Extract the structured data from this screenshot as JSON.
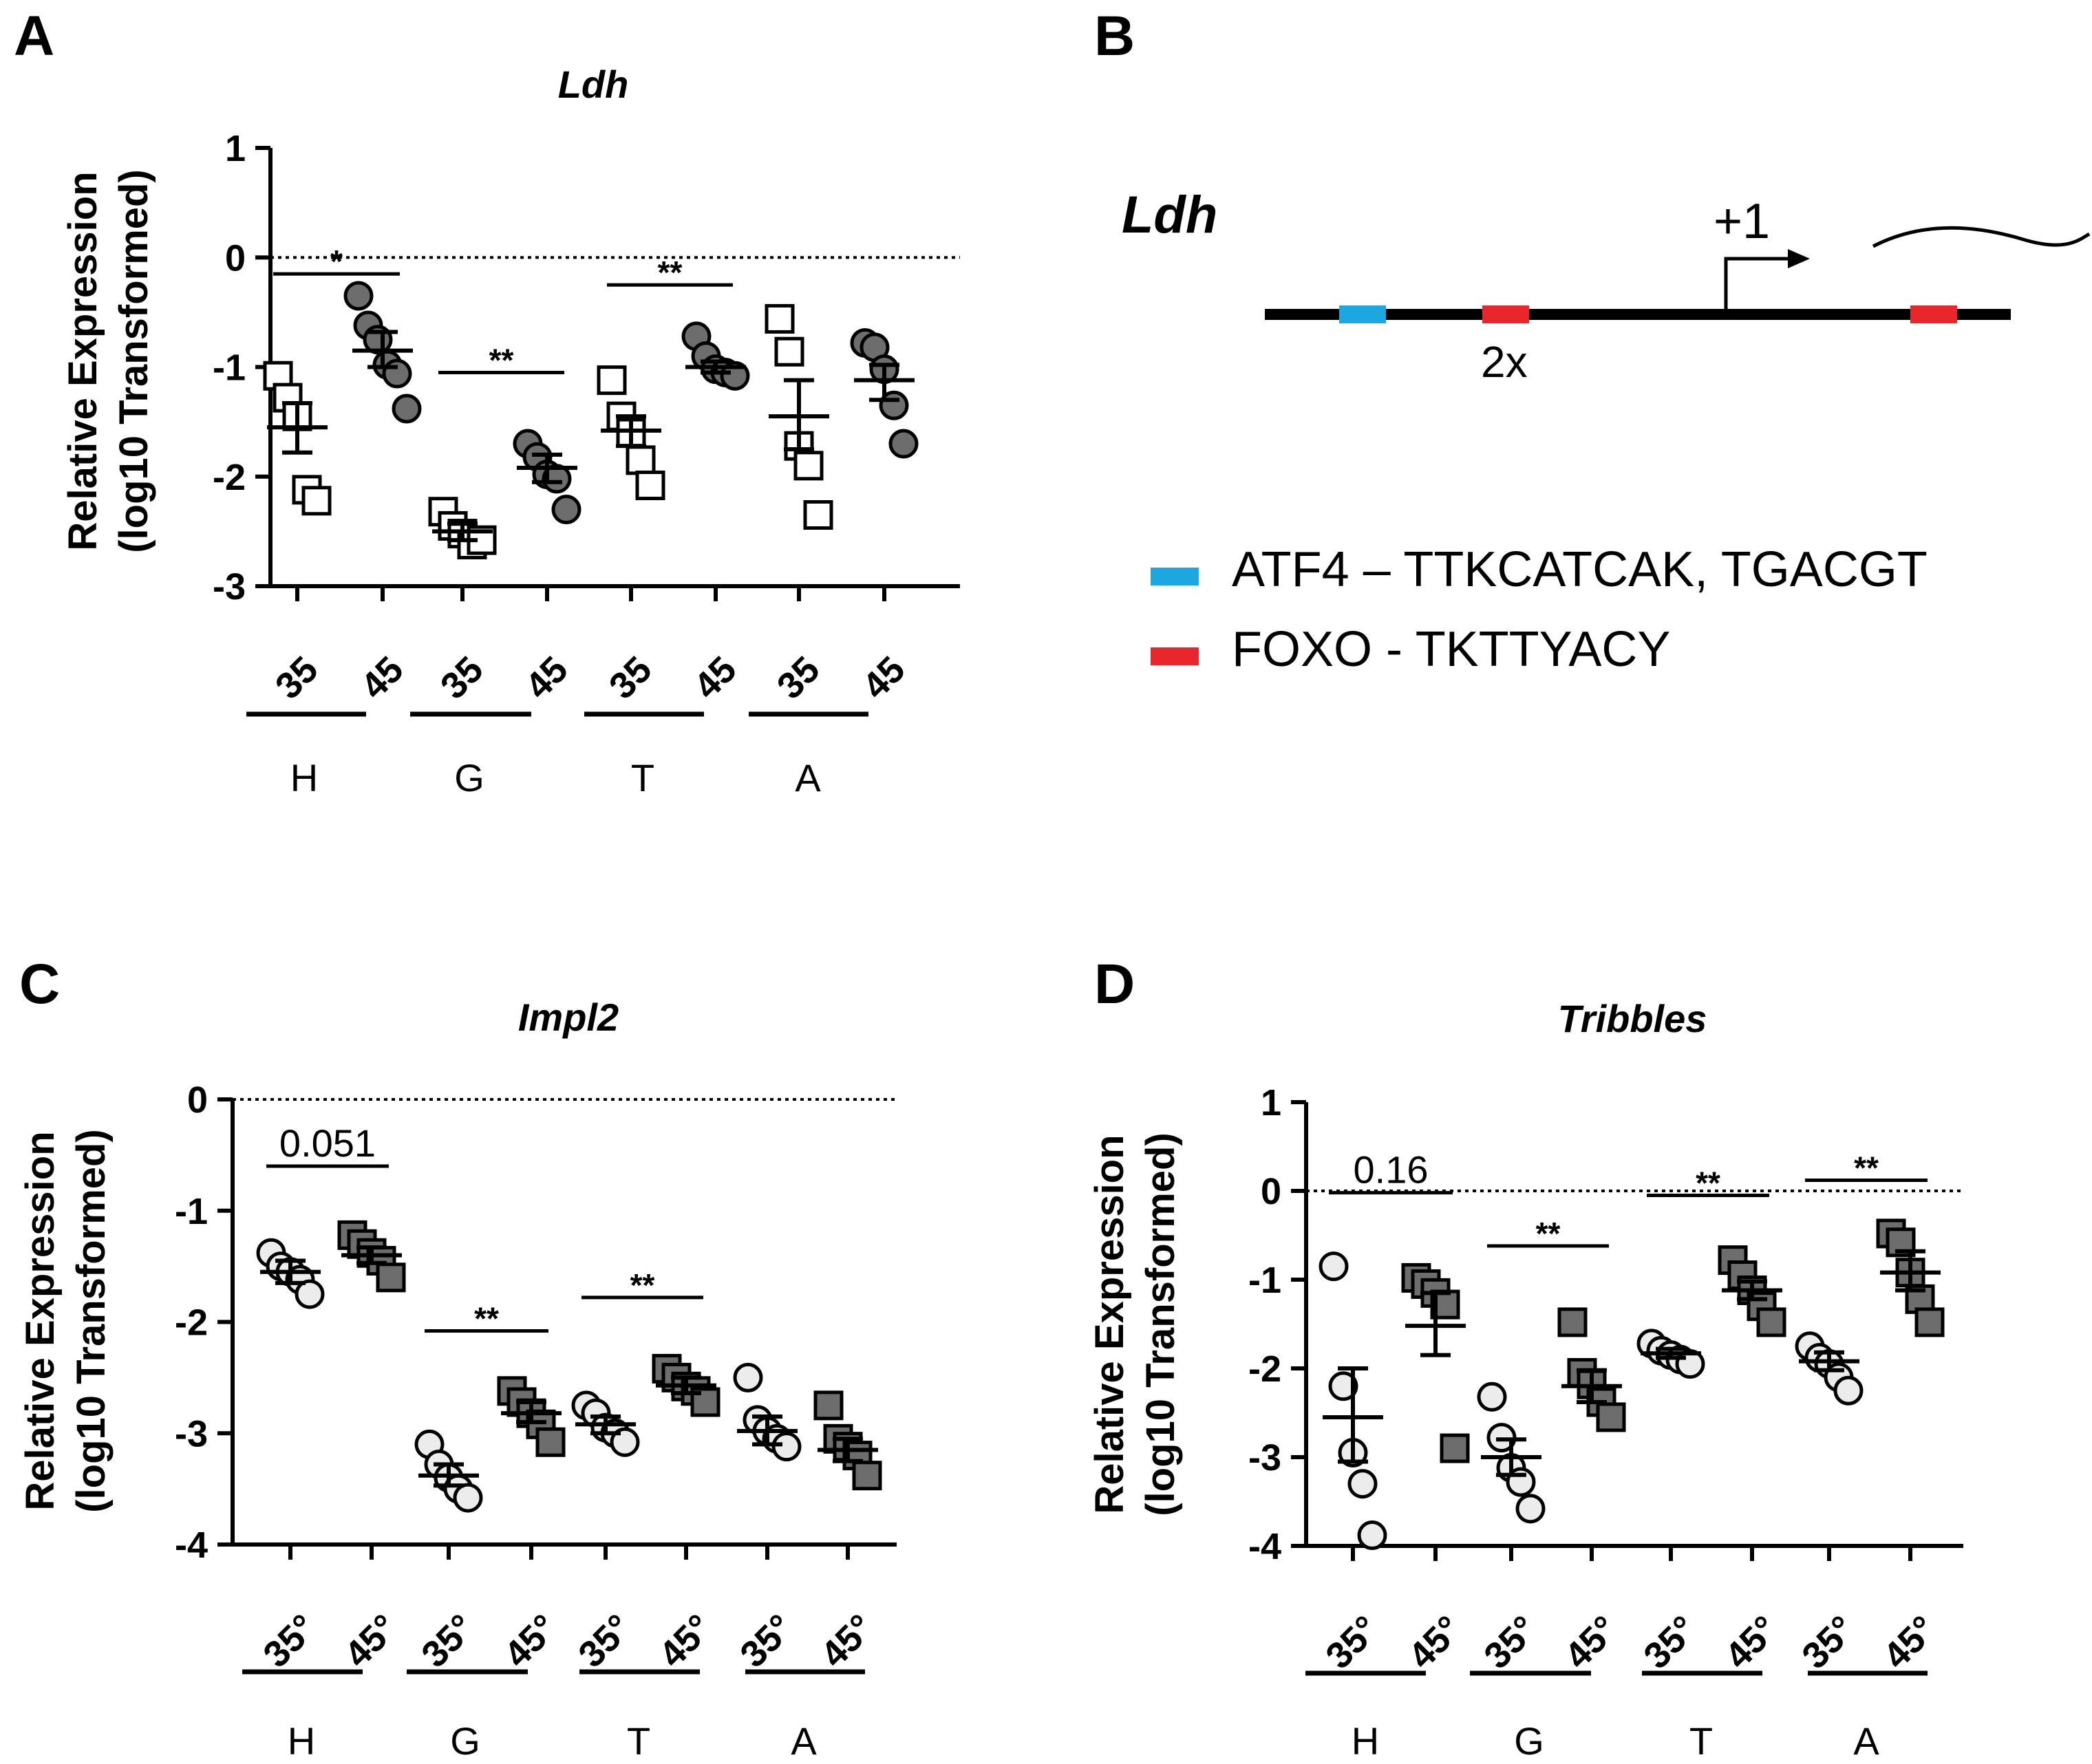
{
  "chart_data": [
    {
      "panel": "A",
      "type": "scatter",
      "title": "Ldh",
      "ylabel_line1": "Relative Expression",
      "ylabel_line2": "(log10 Transformed)",
      "ylim": [
        -3,
        1
      ],
      "yticks": [
        1,
        0,
        -1,
        -2,
        -3
      ],
      "ytick_labels": [
        "1",
        "0",
        "-1",
        "-2",
        "-3"
      ],
      "x_labels": [
        "35",
        "45",
        "35",
        "45",
        "35",
        "45",
        "35",
        "45"
      ],
      "groups": [
        "H",
        "G",
        "T",
        "A"
      ],
      "marker_35": "open-square",
      "marker_45": "gray-circle",
      "series": [
        {
          "name": "H 35",
          "values": [
            -1.08,
            -1.28,
            -1.45,
            -2.12,
            -2.22
          ],
          "mean": -1.55,
          "sem_low": -1.78,
          "sem_high": -1.33
        },
        {
          "name": "H 45",
          "values": [
            -0.35,
            -0.62,
            -0.75,
            -0.98,
            -1.06,
            -1.38
          ],
          "mean": -0.85,
          "sem_low": -1.0,
          "sem_high": -0.68
        },
        {
          "name": "G 35",
          "values": [
            -2.32,
            -2.45,
            -2.52,
            -2.62,
            -2.58
          ],
          "mean": -2.5,
          "sem_low": -2.58,
          "sem_high": -2.43
        },
        {
          "name": "G 45",
          "values": [
            -1.7,
            -1.82,
            -1.98,
            -2.02,
            -2.3
          ],
          "mean": -1.92,
          "sem_low": -2.05,
          "sem_high": -1.8
        },
        {
          "name": "T 35",
          "values": [
            -1.12,
            -1.45,
            -1.6,
            -1.85,
            -2.08
          ],
          "mean": -1.58,
          "sem_low": -1.72,
          "sem_high": -1.45
        },
        {
          "name": "T 45",
          "values": [
            -0.72,
            -0.9,
            -1.02,
            -1.05,
            -1.08
          ],
          "mean": -1.0,
          "sem_low": -1.05,
          "sem_high": -0.95
        },
        {
          "name": "A 35",
          "values": [
            -0.56,
            -0.86,
            -1.72,
            -1.9,
            -2.35
          ],
          "mean": -1.45,
          "sem_low": -1.75,
          "sem_high": -1.12
        },
        {
          "name": "A 45",
          "values": [
            -0.78,
            -0.82,
            -1.02,
            -1.35,
            -1.7
          ],
          "mean": -1.12,
          "sem_low": -1.3,
          "sem_high": -0.98
        }
      ],
      "sig": [
        {
          "label": "*",
          "from": 0,
          "to": 1,
          "y": -0.15
        },
        {
          "label": "**",
          "from": 2,
          "to": 3,
          "y": -1.05
        },
        {
          "label": "**",
          "from": 4,
          "to": 5,
          "y": -0.25
        }
      ]
    },
    {
      "panel": "C",
      "type": "scatter",
      "title": "Impl2",
      "ylabel_line1": "Relative Expression",
      "ylabel_line2": "(log10 Transformed)",
      "ylim": [
        -4,
        0
      ],
      "yticks": [
        0,
        -1,
        -2,
        -3,
        -4
      ],
      "ytick_labels": [
        "0",
        "-1",
        "-2",
        "-3",
        "-4"
      ],
      "x_labels": [
        "35°",
        "45°",
        "35°",
        "45°",
        "35°",
        "45°",
        "35°",
        "45°"
      ],
      "groups": [
        "H",
        "G",
        "T",
        "A"
      ],
      "marker_35": "light-circle",
      "marker_45": "gray-square",
      "series": [
        {
          "name": "H 35",
          "values": [
            -1.38,
            -1.5,
            -1.55,
            -1.62,
            -1.75
          ],
          "mean": -1.55,
          "sem_low": -1.65,
          "sem_high": -1.45
        },
        {
          "name": "H 45",
          "values": [
            -1.22,
            -1.3,
            -1.38,
            -1.45,
            -1.6
          ],
          "mean": -1.4,
          "sem_low": -1.47,
          "sem_high": -1.33
        },
        {
          "name": "G 35",
          "values": [
            -3.1,
            -3.28,
            -3.4,
            -3.5,
            -3.58
          ],
          "mean": -3.38,
          "sem_low": -3.47,
          "sem_high": -3.28
        },
        {
          "name": "G 45",
          "values": [
            -2.62,
            -2.72,
            -2.82,
            -2.92,
            -3.08
          ],
          "mean": -2.82,
          "sem_low": -2.9,
          "sem_high": -2.72
        },
        {
          "name": "T 35",
          "values": [
            -2.75,
            -2.82,
            -2.95,
            -3.0,
            -3.08
          ],
          "mean": -2.92,
          "sem_low": -3.0,
          "sem_high": -2.85
        },
        {
          "name": "T 45",
          "values": [
            -2.42,
            -2.5,
            -2.58,
            -2.62,
            -2.72
          ],
          "mean": -2.57,
          "sem_low": -2.64,
          "sem_high": -2.5
        },
        {
          "name": "A 35",
          "values": [
            -2.5,
            -2.88,
            -2.98,
            -3.05,
            -3.12
          ],
          "mean": -2.98,
          "sem_low": -3.1,
          "sem_high": -2.85
        },
        {
          "name": "A 45",
          "values": [
            -2.75,
            -3.05,
            -3.12,
            -3.2,
            -3.38
          ],
          "mean": -3.15,
          "sem_low": -3.25,
          "sem_high": -3.05
        }
      ],
      "sig": [
        {
          "label": "0.051",
          "from": 0,
          "to": 1,
          "y": -0.6
        },
        {
          "label": "**",
          "from": 2,
          "to": 3,
          "y": -2.08
        },
        {
          "label": "**",
          "from": 4,
          "to": 5,
          "y": -1.78
        }
      ]
    },
    {
      "panel": "D",
      "type": "scatter",
      "title": "Tribbles",
      "ylabel_line1": "Relative Expression",
      "ylabel_line2": "(log10 Transformed)",
      "ylim": [
        -4,
        1
      ],
      "yticks": [
        1,
        0,
        -1,
        -2,
        -3,
        -4
      ],
      "ytick_labels": [
        "1",
        "0",
        "-1",
        "-2",
        "-3",
        "-4"
      ],
      "x_labels": [
        "35°",
        "45°",
        "35°",
        "45°",
        "35°",
        "45°",
        "35°",
        "45°"
      ],
      "groups": [
        "H",
        "G",
        "T",
        "A"
      ],
      "marker_35": "light-circle",
      "marker_45": "gray-square",
      "series": [
        {
          "name": "H 35",
          "values": [
            -0.85,
            -2.2,
            -2.95,
            -3.3,
            -3.88
          ],
          "mean": -2.55,
          "sem_low": -3.05,
          "sem_high": -2.0
        },
        {
          "name": "H 45",
          "values": [
            -0.98,
            -1.05,
            -1.15,
            -1.28,
            -2.9
          ],
          "mean": -1.52,
          "sem_low": -1.85,
          "sem_high": -1.15
        },
        {
          "name": "G 35",
          "values": [
            -2.32,
            -2.78,
            -3.12,
            -3.28,
            -3.58
          ],
          "mean": -3.0,
          "sem_low": -3.2,
          "sem_high": -2.8
        },
        {
          "name": "G 45",
          "values": [
            -1.48,
            -2.05,
            -2.18,
            -2.38,
            -2.55
          ],
          "mean": -2.2,
          "sem_low": -2.38,
          "sem_high": -2.02
        },
        {
          "name": "T 35",
          "values": [
            -1.72,
            -1.8,
            -1.85,
            -1.9,
            -1.95
          ],
          "mean": -1.83,
          "sem_low": -1.88,
          "sem_high": -1.78
        },
        {
          "name": "T 45",
          "values": [
            -0.78,
            -0.95,
            -1.12,
            -1.3,
            -1.48
          ],
          "mean": -1.12,
          "sem_low": -1.22,
          "sem_high": -1.02
        },
        {
          "name": "A 35",
          "values": [
            -1.75,
            -1.88,
            -1.95,
            -2.1,
            -2.25
          ],
          "mean": -1.92,
          "sem_low": -2.02,
          "sem_high": -1.82
        },
        {
          "name": "A 45",
          "values": [
            -0.48,
            -0.58,
            -0.92,
            -1.22,
            -1.48
          ],
          "mean": -0.92,
          "sem_low": -1.12,
          "sem_high": -0.68
        }
      ],
      "sig": [
        {
          "label": "0.16",
          "from": 0,
          "to": 1,
          "y": -0.02
        },
        {
          "label": "**",
          "from": 2,
          "to": 3,
          "y": -0.62
        },
        {
          "label": "**",
          "from": 4,
          "to": 5,
          "y": -0.05
        },
        {
          "label": "**",
          "from": 6,
          "to": 7,
          "y": 0.12
        }
      ]
    }
  ],
  "panel_labels": {
    "A": "A",
    "B": "B",
    "C": "C",
    "D": "D"
  },
  "diagram": {
    "gene": "Ldh",
    "tss": "+1",
    "repeat": "2x",
    "legend": [
      {
        "color": "#1ca7e0",
        "label": "ATF4 – TTKCATCAK,  TGACGT"
      },
      {
        "color": "#e8262c",
        "label": "FOXO - TKTTYACY"
      }
    ]
  },
  "colors": {
    "axis": "#000000",
    "gray_fill": "#6d6d6d",
    "light_fill": "#ececec",
    "open_fill": "#ffffff"
  }
}
